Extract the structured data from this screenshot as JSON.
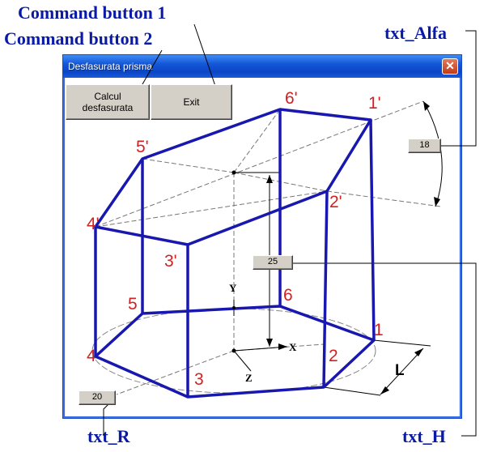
{
  "callouts": {
    "cmd1": "Command button 1",
    "cmd2": "Command button 2",
    "alfa": "txt_Alfa",
    "r": "txt_R",
    "h": "txt_H"
  },
  "window": {
    "title": "Desfasurata prisma",
    "close_glyph": "✕"
  },
  "buttons": {
    "calcul_line1": "Calcul",
    "calcul_line2": "desfasurata",
    "exit": "Exit"
  },
  "inputs": {
    "alfa": "18",
    "h": "25",
    "r": "20"
  },
  "vertex_labels": {
    "v1p": "1'",
    "v2p": "2'",
    "v3p": "3'",
    "v4p": "4'",
    "v5p": "5'",
    "v6p": "6'",
    "v1": "1",
    "v2": "2",
    "v3": "3",
    "v4": "4",
    "v5": "5",
    "v6": "6"
  },
  "axes": {
    "y": "Y",
    "x": "X",
    "z": "Z"
  },
  "dimension_label": "L",
  "colors": {
    "callout_text": "#0a1aa8",
    "prism_edges": "#1818b0",
    "vertex_labels": "#d42020",
    "titlebar": "#0a46c5"
  }
}
